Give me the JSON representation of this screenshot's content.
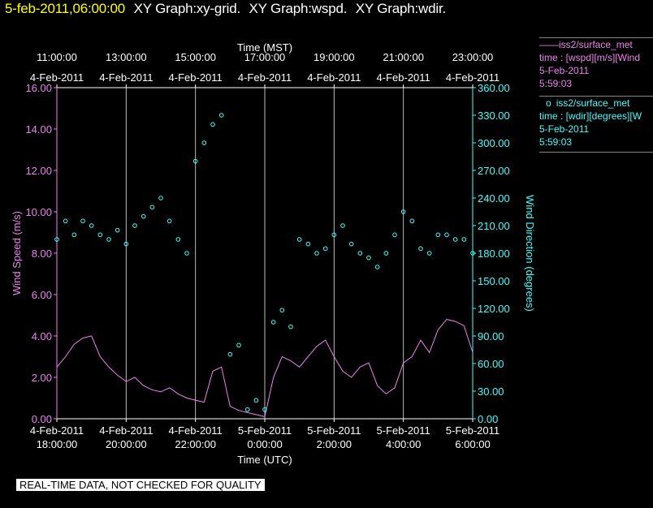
{
  "header": {
    "timestamp": "5-feb-2011,06:00:00",
    "graphs": [
      "XY Graph:xy-grid.",
      "XY Graph:wspd.",
      "XY Graph:wdir."
    ]
  },
  "legend": [
    {
      "marker": "——",
      "name": "iss2/surface_met",
      "desc": "time : [wspd][m/s][Wind",
      "date": "5-Feb-2011",
      "time": "5:59:03",
      "color": "#ee82ee"
    },
    {
      "marker": "o",
      "name": "iss2/surface_met",
      "desc": "time : [wdir][degrees][W",
      "date": "5-Feb-2011",
      "time": "5:59:03",
      "color": "#40ffff"
    }
  ],
  "disclaimer": "REAL-TIME DATA, NOT CHECKED FOR QUALITY",
  "chart_data": {
    "type": "line",
    "x_top_label": "Time (MST)",
    "x_bottom_label": "Time (UTC)",
    "x_top_ticks": [
      {
        "time": "11:00:00",
        "date": "4-Feb-2011"
      },
      {
        "time": "13:00:00",
        "date": "4-Feb-2011"
      },
      {
        "time": "15:00:00",
        "date": "4-Feb-2011"
      },
      {
        "time": "17:00:00",
        "date": "4-Feb-2011"
      },
      {
        "time": "19:00:00",
        "date": "4-Feb-2011"
      },
      {
        "time": "21:00:00",
        "date": "4-Feb-2011"
      },
      {
        "time": "23:00:00",
        "date": "4-Feb-2011"
      }
    ],
    "x_bottom_ticks": [
      {
        "date": "4-Feb-2011",
        "time": "18:00:00"
      },
      {
        "date": "4-Feb-2011",
        "time": "20:00:00"
      },
      {
        "date": "4-Feb-2011",
        "time": "22:00:00"
      },
      {
        "date": "5-Feb-2011",
        "time": "0:00:00"
      },
      {
        "date": "5-Feb-2011",
        "time": "2:00:00"
      },
      {
        "date": "5-Feb-2011",
        "time": "4:00:00"
      },
      {
        "date": "5-Feb-2011",
        "time": "6:00:00"
      }
    ],
    "x_hours_utc": [
      18,
      20,
      22,
      24,
      26,
      28,
      30
    ],
    "xlim_hours_utc": [
      18,
      30
    ],
    "y_left": {
      "label": "Wind Speed (m/s)",
      "range": [
        0,
        16
      ],
      "ticks": [
        "0.00",
        "2.00",
        "4.00",
        "6.00",
        "8.00",
        "10.00",
        "12.00",
        "14.00",
        "16.00"
      ],
      "color": "#ee82ee"
    },
    "y_right": {
      "label": "Wind Direction (degrees)",
      "range": [
        0,
        360
      ],
      "ticks": [
        "0.00",
        "30.00",
        "60.00",
        "90.00",
        "120.00",
        "150.00",
        "180.00",
        "210.00",
        "240.00",
        "270.00",
        "300.00",
        "330.00",
        "360.00"
      ],
      "color": "#40ffff"
    },
    "grid": "vertical",
    "series": [
      {
        "name": "iss2/surface_met",
        "kind": "line",
        "axis": "left",
        "color": "#ee82ee",
        "x": [
          18.0,
          18.25,
          18.5,
          18.75,
          19.0,
          19.25,
          19.5,
          19.75,
          20.0,
          20.25,
          20.5,
          20.75,
          21.0,
          21.25,
          21.5,
          21.75,
          22.0,
          22.25,
          22.5,
          22.75,
          23.0,
          23.25,
          23.5,
          23.75,
          24.0,
          24.25,
          24.5,
          24.75,
          25.0,
          25.25,
          25.5,
          25.75,
          26.0,
          26.25,
          26.5,
          26.75,
          27.0,
          27.25,
          27.5,
          27.75,
          28.0,
          28.25,
          28.5,
          28.75,
          29.0,
          29.25,
          29.5,
          29.75,
          30.0
        ],
        "y": [
          2.5,
          3.0,
          3.6,
          3.9,
          4.0,
          3.0,
          2.5,
          2.1,
          1.8,
          2.0,
          1.6,
          1.4,
          1.3,
          1.5,
          1.2,
          1.0,
          0.9,
          0.8,
          2.3,
          2.5,
          0.6,
          0.4,
          0.3,
          0.2,
          0.1,
          2.0,
          3.0,
          2.8,
          2.5,
          3.0,
          3.5,
          3.8,
          3.0,
          2.3,
          2.0,
          2.5,
          2.7,
          1.6,
          1.2,
          1.5,
          2.7,
          3.0,
          3.8,
          3.2,
          4.3,
          4.8,
          4.7,
          4.5,
          3.2
        ]
      },
      {
        "name": "iss2/surface_met",
        "kind": "scatter",
        "axis": "right",
        "color": "#40ffff",
        "x": [
          18.0,
          18.25,
          18.5,
          18.75,
          19.0,
          19.25,
          19.5,
          19.75,
          20.0,
          20.25,
          20.5,
          20.75,
          21.0,
          21.25,
          21.5,
          21.75,
          22.0,
          22.25,
          22.5,
          22.75,
          23.0,
          23.25,
          23.5,
          23.75,
          24.0,
          24.25,
          24.5,
          24.75,
          25.0,
          25.25,
          25.5,
          25.75,
          26.0,
          26.25,
          26.5,
          26.75,
          27.0,
          27.25,
          27.5,
          27.75,
          28.0,
          28.25,
          28.5,
          28.75,
          29.0,
          29.25,
          29.5,
          29.75,
          30.0
        ],
        "y": [
          195,
          215,
          200,
          215,
          210,
          200,
          195,
          205,
          190,
          210,
          220,
          230,
          240,
          215,
          195,
          180,
          280,
          300,
          320,
          330,
          70,
          80,
          10,
          20,
          10,
          105,
          118,
          100,
          195,
          190,
          180,
          185,
          200,
          210,
          190,
          180,
          175,
          165,
          180,
          200,
          225,
          215,
          185,
          180,
          200,
          200,
          195,
          195,
          180
        ]
      }
    ]
  }
}
